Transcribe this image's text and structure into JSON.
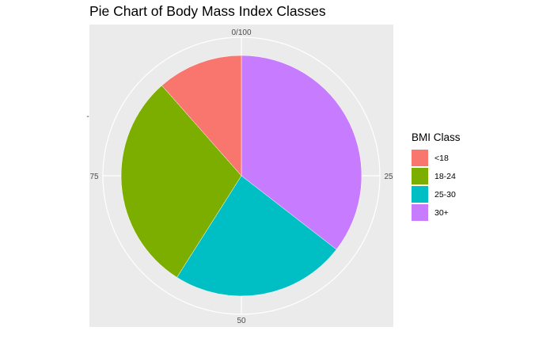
{
  "chart_data": {
    "type": "pie",
    "title": "Pie Chart of Body Mass Index Classes",
    "xlabel": "",
    "ylabel": "",
    "legend_title": "BMI Class",
    "legend_position": "right",
    "grid": true,
    "theta_ticks": [
      {
        "value": 0,
        "label": "0/100"
      },
      {
        "value": 25,
        "label": "25"
      },
      {
        "value": 50,
        "label": "50"
      },
      {
        "value": 75,
        "label": "75"
      }
    ],
    "radial_tick_label": "-",
    "categories": [
      "<18",
      "18-24",
      "25-30",
      "30+"
    ],
    "values": [
      11.5,
      29.5,
      23.5,
      35.5
    ],
    "colors": [
      "#F8766D",
      "#7CAE00",
      "#00BFC4",
      "#C77CFF"
    ],
    "draw_order": [
      3,
      2,
      1,
      0
    ]
  }
}
